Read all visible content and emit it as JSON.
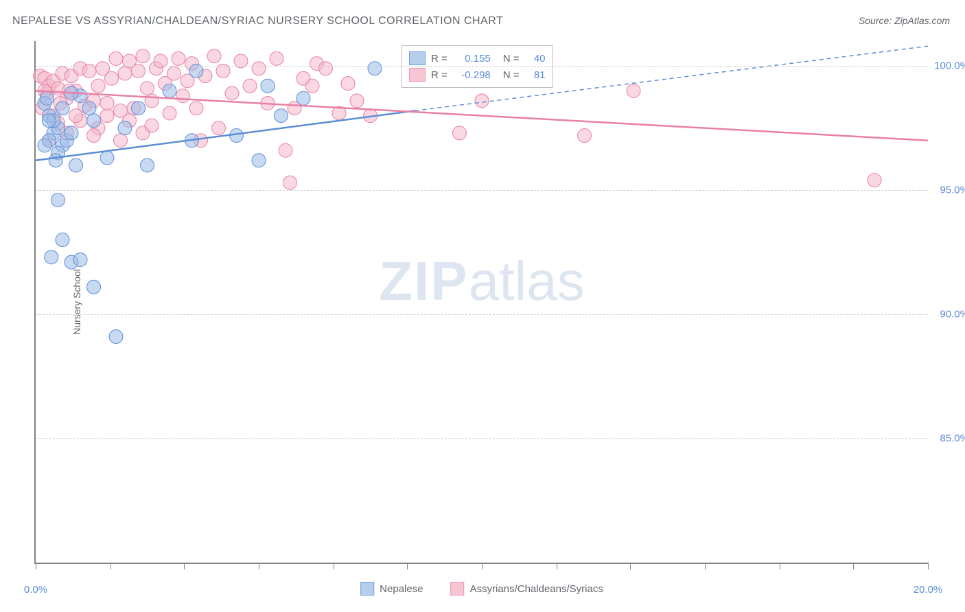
{
  "title": "NEPALESE VS ASSYRIAN/CHALDEAN/SYRIAC NURSERY SCHOOL CORRELATION CHART",
  "source": "Source: ZipAtlas.com",
  "ylabel": "Nursery School",
  "watermark_bold": "ZIP",
  "watermark_light": "atlas",
  "chart": {
    "type": "scatter",
    "xlim": [
      0,
      20
    ],
    "ylim": [
      80,
      101
    ],
    "xtick_values": [
      0,
      1.67,
      3.33,
      5,
      6.67,
      8.33,
      10,
      11.67,
      13.33,
      15,
      16.67,
      18.33,
      20
    ],
    "xtick_labels": {
      "0": "0.0%",
      "20": "20.0%"
    },
    "ytick_values": [
      85,
      90,
      95,
      100
    ],
    "ytick_labels": [
      "85.0%",
      "90.0%",
      "95.0%",
      "100.0%"
    ],
    "grid_color": "#d0d0d0",
    "axis_color": "#828282",
    "background_color": "#ffffff",
    "marker_radius": 10,
    "marker_opacity": 0.55,
    "line_width": 2.5,
    "series": [
      {
        "name": "Nepalese",
        "color_fill": "#9bbce8",
        "color_stroke": "#5b8dd6",
        "swatch_fill": "#b7cdec",
        "swatch_border": "#6a9de0",
        "trend": {
          "x1": 0,
          "y1": 96.2,
          "x2": 8.5,
          "y2": 98.2,
          "x2_ext": 20,
          "y2_ext": 100.8
        },
        "points": [
          [
            0.2,
            98.5
          ],
          [
            0.3,
            98.0
          ],
          [
            0.25,
            98.7
          ],
          [
            0.4,
            97.3
          ],
          [
            0.5,
            97.5
          ],
          [
            0.3,
            97.0
          ],
          [
            0.4,
            97.8
          ],
          [
            0.6,
            96.8
          ],
          [
            0.7,
            97.0
          ],
          [
            0.5,
            96.5
          ],
          [
            0.8,
            97.3
          ],
          [
            1.0,
            98.8
          ],
          [
            1.2,
            98.3
          ],
          [
            0.2,
            96.8
          ],
          [
            0.35,
            92.3
          ],
          [
            0.6,
            93.0
          ],
          [
            0.8,
            92.1
          ],
          [
            0.5,
            94.6
          ],
          [
            1.0,
            92.2
          ],
          [
            1.3,
            91.1
          ],
          [
            1.6,
            96.3
          ],
          [
            2.0,
            97.5
          ],
          [
            2.3,
            98.3
          ],
          [
            2.5,
            96.0
          ],
          [
            3.0,
            99.0
          ],
          [
            3.5,
            97.0
          ],
          [
            3.6,
            99.8
          ],
          [
            4.5,
            97.2
          ],
          [
            5.2,
            99.2
          ],
          [
            5.5,
            98.0
          ],
          [
            5.0,
            96.2
          ],
          [
            6.0,
            98.7
          ],
          [
            7.6,
            99.9
          ],
          [
            1.8,
            89.1
          ],
          [
            0.3,
            97.8
          ],
          [
            0.6,
            98.3
          ],
          [
            0.45,
            96.2
          ],
          [
            0.9,
            96.0
          ],
          [
            1.3,
            97.8
          ],
          [
            0.8,
            98.9
          ]
        ]
      },
      {
        "name": "Assyrians/Chaldeans/Syriacs",
        "color_fill": "#f4b8c8",
        "color_stroke": "#e87fa5",
        "swatch_fill": "#f7c6d3",
        "swatch_border": "#ef94b3",
        "trend": {
          "x1": 0,
          "y1": 99.0,
          "x2": 20,
          "y2": 97.0
        },
        "points": [
          [
            0.1,
            99.6
          ],
          [
            0.2,
            99.5
          ],
          [
            0.3,
            99.2
          ],
          [
            0.25,
            98.9
          ],
          [
            0.4,
            99.4
          ],
          [
            0.5,
            99.1
          ],
          [
            0.6,
            99.7
          ],
          [
            0.7,
            98.7
          ],
          [
            0.8,
            99.6
          ],
          [
            0.9,
            99.0
          ],
          [
            1.0,
            99.9
          ],
          [
            1.1,
            98.4
          ],
          [
            1.2,
            99.8
          ],
          [
            1.3,
            98.6
          ],
          [
            1.4,
            99.2
          ],
          [
            1.5,
            99.9
          ],
          [
            1.6,
            98.0
          ],
          [
            1.7,
            99.5
          ],
          [
            1.8,
            100.3
          ],
          [
            1.9,
            98.2
          ],
          [
            2.0,
            99.7
          ],
          [
            2.1,
            100.2
          ],
          [
            2.2,
            98.3
          ],
          [
            2.3,
            99.8
          ],
          [
            2.4,
            100.4
          ],
          [
            2.5,
            99.1
          ],
          [
            2.6,
            98.6
          ],
          [
            2.7,
            99.9
          ],
          [
            2.8,
            100.2
          ],
          [
            2.9,
            99.3
          ],
          [
            3.0,
            98.1
          ],
          [
            3.1,
            99.7
          ],
          [
            3.2,
            100.3
          ],
          [
            3.3,
            98.8
          ],
          [
            3.4,
            99.4
          ],
          [
            3.5,
            100.1
          ],
          [
            3.6,
            98.3
          ],
          [
            3.8,
            99.6
          ],
          [
            4.0,
            100.4
          ],
          [
            4.2,
            99.8
          ],
          [
            4.4,
            98.9
          ],
          [
            4.6,
            100.2
          ],
          [
            4.8,
            99.2
          ],
          [
            5.0,
            99.9
          ],
          [
            5.2,
            98.5
          ],
          [
            5.4,
            100.3
          ],
          [
            5.6,
            96.6
          ],
          [
            5.8,
            98.3
          ],
          [
            6.0,
            99.5
          ],
          [
            6.3,
            100.1
          ],
          [
            6.5,
            99.9
          ],
          [
            6.8,
            98.1
          ],
          [
            7.0,
            99.3
          ],
          [
            7.2,
            98.6
          ],
          [
            7.5,
            98.0
          ],
          [
            5.7,
            95.3
          ],
          [
            1.4,
            97.5
          ],
          [
            1.0,
            97.8
          ],
          [
            0.7,
            97.3
          ],
          [
            0.5,
            97.7
          ],
          [
            0.9,
            98.0
          ],
          [
            1.3,
            97.2
          ],
          [
            1.6,
            98.5
          ],
          [
            1.9,
            97.0
          ],
          [
            2.1,
            97.8
          ],
          [
            2.4,
            97.3
          ],
          [
            0.3,
            97.0
          ],
          [
            0.15,
            98.3
          ],
          [
            0.4,
            98.0
          ],
          [
            0.55,
            98.5
          ],
          [
            0.75,
            99.0
          ],
          [
            0.2,
            99.0
          ],
          [
            9.5,
            97.3
          ],
          [
            10.0,
            98.6
          ],
          [
            12.3,
            97.2
          ],
          [
            13.4,
            99.0
          ],
          [
            6.2,
            99.2
          ],
          [
            4.1,
            97.5
          ],
          [
            3.7,
            97.0
          ],
          [
            2.6,
            97.6
          ],
          [
            18.8,
            95.4
          ]
        ]
      }
    ],
    "stats": [
      {
        "series_index": 0,
        "R": "0.155",
        "N": "40"
      },
      {
        "series_index": 1,
        "R": "-0.298",
        "N": "81"
      }
    ],
    "stats_labels": {
      "R": "R =",
      "N": "N ="
    }
  }
}
